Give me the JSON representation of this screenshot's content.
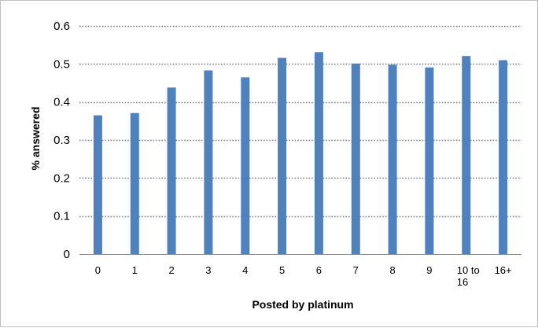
{
  "chart_data": {
    "type": "bar",
    "title": "",
    "xlabel": "Posted by platinum",
    "ylabel": "% answered",
    "categories": [
      "0",
      "1",
      "2",
      "3",
      "4",
      "5",
      "6",
      "7",
      "8",
      "9",
      "10 to 16",
      "16+"
    ],
    "category_lines": [
      [
        "0"
      ],
      [
        "1"
      ],
      [
        "2"
      ],
      [
        "3"
      ],
      [
        "4"
      ],
      [
        "5"
      ],
      [
        "6"
      ],
      [
        "7"
      ],
      [
        "8"
      ],
      [
        "9"
      ],
      [
        "10 to",
        "16"
      ],
      [
        "16+"
      ]
    ],
    "values": [
      0.365,
      0.371,
      0.438,
      0.483,
      0.465,
      0.516,
      0.531,
      0.501,
      0.498,
      0.491,
      0.521,
      0.51
    ],
    "ylim": [
      0,
      0.6
    ],
    "yticks": [
      "0",
      "0.1",
      "0.2",
      "0.3",
      "0.4",
      "0.5",
      "0.6"
    ],
    "grid": true,
    "grid_style": "dotted",
    "legend": "none",
    "bar_color": "#4f81bd",
    "grid_color": "#7f7f7f"
  }
}
